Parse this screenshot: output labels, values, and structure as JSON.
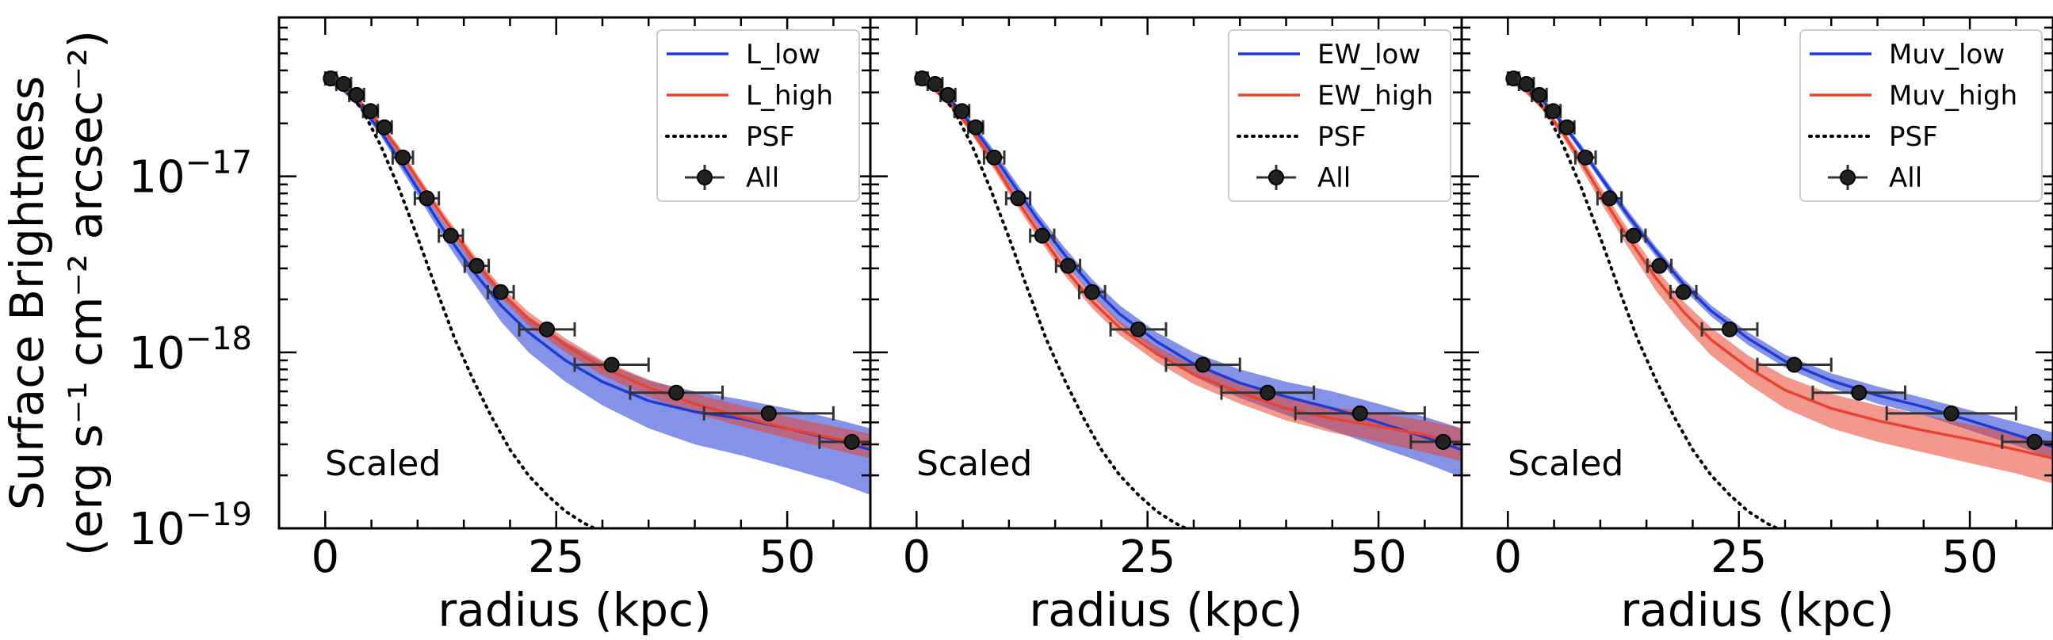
{
  "chart_data": [
    {
      "type": "line",
      "panel": 1,
      "xlabel": "radius (kpc)",
      "ylabel_line1": "Surface Brightness",
      "ylabel_line2": "(erg s⁻¹ cm⁻² arcsec⁻²)",
      "xlim": [
        -5,
        59
      ],
      "ylim": [
        1e-19,
        8e-17
      ],
      "yscale": "log",
      "xticks": [
        0,
        25,
        50
      ],
      "yticks": [
        1e-19,
        1e-18,
        1e-17
      ],
      "ytick_labels": [
        {
          "base": "10",
          "exp": "−19"
        },
        {
          "base": "10",
          "exp": "−18"
        },
        {
          "base": "10",
          "exp": "−17"
        }
      ],
      "annotation": "Scaled",
      "legend": {
        "position": "top-right",
        "entries": [
          "L_low",
          "L_high",
          "PSF",
          "All"
        ]
      },
      "series": [
        {
          "name": "L_low",
          "color": "#1f3bd6",
          "x": [
            0,
            2,
            4,
            6,
            8,
            10,
            13,
            16,
            19,
            22,
            26,
            30,
            35,
            40,
            45,
            50,
            55,
            59
          ],
          "values": [
            3.6e-17,
            3.1e-17,
            2.45e-17,
            1.8e-17,
            1.25e-17,
            8.5e-18,
            4.8e-18,
            2.9e-18,
            1.85e-18,
            1.3e-18,
            9e-19,
            6.8e-19,
            5.3e-19,
            4.6e-19,
            4.2e-19,
            3.7e-19,
            3.2e-19,
            2.8e-19
          ],
          "band_low": [
            3.5e-17,
            3e-17,
            2.35e-17,
            1.7e-17,
            1.15e-17,
            7.8e-18,
            4.3e-18,
            2.5e-18,
            1.5e-18,
            1e-18,
            6.8e-19,
            5e-19,
            3.7e-19,
            3e-19,
            2.6e-19,
            2.2e-19,
            1.85e-19,
            1.55e-19
          ],
          "band_high": [
            3.7e-17,
            3.2e-17,
            2.55e-17,
            1.9e-17,
            1.35e-17,
            9.2e-18,
            5.3e-18,
            3.3e-18,
            2.2e-18,
            1.6e-18,
            1.15e-18,
            8.8e-19,
            6.9e-19,
            6e-19,
            5.4e-19,
            4.8e-19,
            4.2e-19,
            3.7e-19
          ]
        },
        {
          "name": "L_high",
          "color": "#e8432f",
          "x": [
            0,
            2,
            4,
            6,
            8,
            10,
            13,
            16,
            19,
            22,
            26,
            30,
            35,
            40,
            45,
            50,
            55,
            59
          ],
          "values": [
            3.6e-17,
            3.15e-17,
            2.55e-17,
            1.95e-17,
            1.4e-17,
            9.6e-18,
            5.6e-18,
            3.4e-18,
            2.2e-18,
            1.55e-18,
            1.1e-18,
            8.2e-19,
            6.3e-19,
            5.1e-19,
            4.3e-19,
            3.7e-19,
            3.25e-19,
            2.95e-19
          ],
          "band_low": [
            3.5e-17,
            3.05e-17,
            2.45e-17,
            1.85e-17,
            1.32e-17,
            9e-18,
            5.2e-18,
            3.15e-18,
            2.05e-18,
            1.42e-18,
            1e-18,
            7.4e-19,
            5.6e-19,
            4.5e-19,
            3.8e-19,
            3.25e-19,
            2.8e-19,
            2.5e-19
          ],
          "band_high": [
            3.7e-17,
            3.25e-17,
            2.65e-17,
            2.05e-17,
            1.48e-17,
            1.02e-17,
            6e-18,
            3.65e-18,
            2.38e-18,
            1.7e-18,
            1.2e-18,
            9e-19,
            7e-19,
            5.8e-19,
            5e-19,
            4.3e-19,
            3.8e-19,
            3.45e-19
          ]
        },
        {
          "name": "PSF",
          "color": "#000000",
          "style": "dotted",
          "x": [
            0,
            2,
            4,
            6,
            8,
            10,
            12,
            14,
            16,
            18,
            20,
            22,
            24,
            26,
            28,
            30
          ],
          "values": [
            3.6e-17,
            3.2e-17,
            2.4e-17,
            1.5e-17,
            8.5e-18,
            4.5e-18,
            2.3e-18,
            1.2e-18,
            7e-19,
            4.3e-19,
            2.8e-19,
            2e-19,
            1.55e-19,
            1.25e-19,
            1.07e-19,
            9.5e-20
          ]
        },
        {
          "name": "All",
          "color": "#222222",
          "style": "points",
          "x": [
            0.6,
            2.0,
            3.4,
            4.9,
            6.4,
            8.4,
            11.0,
            13.6,
            16.4,
            19.0,
            24.0,
            31.0,
            38.0,
            48.0,
            57.0
          ],
          "xerr": [
            0.6,
            0.8,
            0.8,
            0.8,
            0.8,
            1.1,
            1.3,
            1.3,
            1.3,
            1.4,
            3.0,
            4.0,
            5.0,
            7.0,
            3.5
          ],
          "values": [
            3.6e-17,
            3.35e-17,
            2.9e-17,
            2.35e-17,
            1.9e-17,
            1.28e-17,
            7.5e-18,
            4.6e-18,
            3.1e-18,
            2.2e-18,
            1.35e-18,
            8.5e-19,
            5.9e-19,
            4.5e-19,
            3.1e-19
          ],
          "yerr_frac": [
            0.08,
            0.08,
            0.08,
            0.08,
            0.08,
            0.08,
            0.07,
            0.07,
            0.07,
            0.07,
            0.07,
            0.07,
            0.1,
            0.1,
            0.1
          ]
        }
      ]
    },
    {
      "type": "line",
      "panel": 2,
      "xlabel": "radius (kpc)",
      "xlim": [
        -5,
        59
      ],
      "ylim": [
        1e-19,
        8e-17
      ],
      "yscale": "log",
      "xticks": [
        0,
        25,
        50
      ],
      "annotation": "Scaled",
      "legend": {
        "position": "top-right",
        "entries": [
          "EW_low",
          "EW_high",
          "PSF",
          "All"
        ]
      },
      "series": [
        {
          "name": "EW_low",
          "color": "#1f3bd6",
          "x": [
            0,
            2,
            4,
            6,
            8,
            10,
            13,
            16,
            19,
            22,
            26,
            30,
            35,
            40,
            45,
            50,
            55,
            59
          ],
          "values": [
            3.6e-17,
            3.2e-17,
            2.6e-17,
            1.95e-17,
            1.4e-17,
            9.8e-18,
            5.8e-18,
            3.6e-18,
            2.35e-18,
            1.65e-18,
            1.15e-18,
            8.6e-19,
            6.7e-19,
            5.6e-19,
            4.8e-19,
            4e-19,
            3.3e-19,
            2.8e-19
          ],
          "band_low": [
            3.5e-17,
            3.1e-17,
            2.5e-17,
            1.85e-17,
            1.3e-17,
            9e-18,
            5.3e-18,
            3.25e-18,
            2.1e-18,
            1.45e-18,
            1e-18,
            7.3e-19,
            5.5e-19,
            4.4e-19,
            3.6e-19,
            2.9e-19,
            2.35e-19,
            1.95e-19
          ],
          "band_high": [
            3.7e-17,
            3.3e-17,
            2.7e-17,
            2.05e-17,
            1.5e-17,
            1.06e-17,
            6.3e-18,
            3.95e-18,
            2.6e-18,
            1.85e-18,
            1.3e-18,
            1e-18,
            8e-19,
            6.8e-19,
            6e-19,
            5.1e-19,
            4.3e-19,
            3.7e-19
          ]
        },
        {
          "name": "EW_high",
          "color": "#e8432f",
          "x": [
            0,
            2,
            4,
            6,
            8,
            10,
            13,
            16,
            19,
            22,
            26,
            30,
            35,
            40,
            45,
            50,
            55,
            59
          ],
          "values": [
            3.6e-17,
            3.1e-17,
            2.45e-17,
            1.82e-17,
            1.27e-17,
            8.6e-18,
            5e-18,
            3e-18,
            1.95e-18,
            1.38e-18,
            9.8e-19,
            7.5e-19,
            5.9e-19,
            4.8e-19,
            4.2e-19,
            3.8e-19,
            3.4e-19,
            3e-19
          ],
          "band_low": [
            3.5e-17,
            3e-17,
            2.35e-17,
            1.72e-17,
            1.18e-17,
            8e-18,
            4.6e-18,
            2.75e-18,
            1.78e-18,
            1.25e-18,
            8.8e-19,
            6.6e-19,
            5.1e-19,
            4.1e-19,
            3.5e-19,
            3.1e-19,
            2.7e-19,
            2.4e-19
          ],
          "band_high": [
            3.7e-17,
            3.2e-17,
            2.55e-17,
            1.92e-17,
            1.35e-17,
            9.2e-18,
            5.4e-18,
            3.25e-18,
            2.12e-18,
            1.5e-18,
            1.08e-18,
            8.4e-19,
            6.7e-19,
            5.6e-19,
            4.9e-19,
            4.5e-19,
            4.1e-19,
            3.7e-19
          ]
        },
        {
          "name": "PSF",
          "color": "#000000",
          "style": "dotted",
          "x": [
            0,
            2,
            4,
            6,
            8,
            10,
            12,
            14,
            16,
            18,
            20,
            22,
            24,
            26,
            28,
            30
          ],
          "values": [
            3.6e-17,
            3.2e-17,
            2.4e-17,
            1.5e-17,
            8.5e-18,
            4.5e-18,
            2.3e-18,
            1.2e-18,
            7e-19,
            4.3e-19,
            2.8e-19,
            2e-19,
            1.55e-19,
            1.25e-19,
            1.07e-19,
            9.5e-20
          ]
        },
        {
          "name": "All",
          "color": "#222222",
          "style": "points",
          "x": [
            0.6,
            2.0,
            3.4,
            4.9,
            6.4,
            8.4,
            11.0,
            13.6,
            16.4,
            19.0,
            24.0,
            31.0,
            38.0,
            48.0,
            57.0
          ],
          "xerr": [
            0.6,
            0.8,
            0.8,
            0.8,
            0.8,
            1.1,
            1.3,
            1.3,
            1.3,
            1.4,
            3.0,
            4.0,
            5.0,
            7.0,
            3.5
          ],
          "values": [
            3.6e-17,
            3.35e-17,
            2.9e-17,
            2.35e-17,
            1.9e-17,
            1.28e-17,
            7.5e-18,
            4.6e-18,
            3.1e-18,
            2.2e-18,
            1.35e-18,
            8.5e-19,
            5.9e-19,
            4.5e-19,
            3.1e-19
          ],
          "yerr_frac": [
            0.08,
            0.08,
            0.08,
            0.08,
            0.08,
            0.08,
            0.07,
            0.07,
            0.07,
            0.07,
            0.07,
            0.07,
            0.1,
            0.1,
            0.1
          ]
        }
      ]
    },
    {
      "type": "line",
      "panel": 3,
      "xlabel": "radius (kpc)",
      "xlim": [
        -5,
        59
      ],
      "ylim": [
        1e-19,
        8e-17
      ],
      "yscale": "log",
      "xticks": [
        0,
        25,
        50
      ],
      "annotation": "Scaled",
      "legend": {
        "position": "top-right",
        "entries": [
          "Muv_low",
          "Muv_high",
          "PSF",
          "All"
        ]
      },
      "series": [
        {
          "name": "Muv_low",
          "color": "#1f3bd6",
          "x": [
            0,
            2,
            4,
            6,
            8,
            10,
            13,
            16,
            19,
            22,
            26,
            30,
            35,
            40,
            45,
            50,
            55,
            59
          ],
          "values": [
            3.6e-17,
            3.2e-17,
            2.62e-17,
            1.98e-17,
            1.42e-17,
            1e-17,
            6e-18,
            3.75e-18,
            2.45e-18,
            1.72e-18,
            1.2e-18,
            8.9e-19,
            6.9e-19,
            5.7e-19,
            4.9e-19,
            4.1e-19,
            3.4e-19,
            2.9e-19
          ],
          "band_low": [
            3.5e-17,
            3.1e-17,
            2.52e-17,
            1.9e-17,
            1.35e-17,
            9.5e-18,
            5.6e-18,
            3.5e-18,
            2.28e-18,
            1.6e-18,
            1.1e-18,
            8.2e-19,
            6.3e-19,
            5.1e-19,
            4.4e-19,
            3.6e-19,
            2.95e-19,
            2.5e-19
          ],
          "band_high": [
            3.7e-17,
            3.3e-17,
            2.72e-17,
            2.06e-17,
            1.5e-17,
            1.06e-17,
            6.4e-18,
            4e-18,
            2.62e-18,
            1.85e-18,
            1.3e-18,
            9.7e-19,
            7.6e-19,
            6.4e-19,
            5.5e-19,
            4.7e-19,
            4e-19,
            3.5e-19
          ]
        },
        {
          "name": "Muv_high",
          "color": "#e8432f",
          "x": [
            0,
            2,
            4,
            6,
            8,
            10,
            13,
            16,
            19,
            22,
            26,
            30,
            35,
            40,
            45,
            50,
            55,
            59
          ],
          "values": [
            3.6e-17,
            3.05e-17,
            2.4e-17,
            1.75e-17,
            1.2e-17,
            8e-18,
            4.5e-18,
            2.65e-18,
            1.7e-18,
            1.18e-18,
            8.2e-19,
            6.1e-19,
            4.8e-19,
            4.1e-19,
            3.6e-19,
            3.2e-19,
            2.8e-19,
            2.5e-19
          ],
          "band_low": [
            3.5e-17,
            2.95e-17,
            2.3e-17,
            1.65e-17,
            1.1e-17,
            7.2e-18,
            3.95e-18,
            2.25e-18,
            1.42e-18,
            9.6e-19,
            6.6e-19,
            4.8e-19,
            3.7e-19,
            3.1e-19,
            2.7e-19,
            2.35e-19,
            2.05e-19,
            1.8e-19
          ],
          "band_high": [
            3.7e-17,
            3.15e-17,
            2.5e-17,
            1.85e-17,
            1.3e-17,
            8.8e-18,
            5e-18,
            3e-18,
            1.95e-18,
            1.38e-18,
            9.6e-19,
            7.3e-19,
            5.8e-19,
            5e-19,
            4.4e-19,
            3.9e-19,
            3.45e-19,
            3.1e-19
          ]
        },
        {
          "name": "PSF",
          "color": "#000000",
          "style": "dotted",
          "x": [
            0,
            2,
            4,
            6,
            8,
            10,
            12,
            14,
            16,
            18,
            20,
            22,
            24,
            26,
            28,
            30
          ],
          "values": [
            3.6e-17,
            3.2e-17,
            2.4e-17,
            1.5e-17,
            8.5e-18,
            4.5e-18,
            2.3e-18,
            1.2e-18,
            7e-19,
            4.3e-19,
            2.8e-19,
            2e-19,
            1.55e-19,
            1.25e-19,
            1.07e-19,
            9.5e-20
          ]
        },
        {
          "name": "All",
          "color": "#222222",
          "style": "points",
          "x": [
            0.6,
            2.0,
            3.4,
            4.9,
            6.4,
            8.4,
            11.0,
            13.6,
            16.4,
            19.0,
            24.0,
            31.0,
            38.0,
            48.0,
            57.0
          ],
          "xerr": [
            0.6,
            0.8,
            0.8,
            0.8,
            0.8,
            1.1,
            1.3,
            1.3,
            1.3,
            1.4,
            3.0,
            4.0,
            5.0,
            7.0,
            3.5
          ],
          "values": [
            3.6e-17,
            3.35e-17,
            2.9e-17,
            2.35e-17,
            1.9e-17,
            1.28e-17,
            7.5e-18,
            4.6e-18,
            3.1e-18,
            2.2e-18,
            1.35e-18,
            8.5e-19,
            5.9e-19,
            4.5e-19,
            3.1e-19
          ],
          "yerr_frac": [
            0.08,
            0.08,
            0.08,
            0.08,
            0.08,
            0.08,
            0.07,
            0.07,
            0.07,
            0.07,
            0.07,
            0.07,
            0.1,
            0.1,
            0.1
          ]
        }
      ]
    }
  ]
}
